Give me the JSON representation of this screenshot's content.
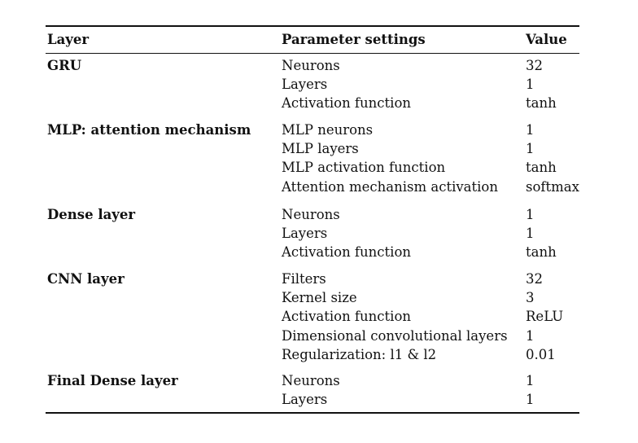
{
  "table": {
    "headers": {
      "layer": "Layer",
      "parameter": "Parameter settings",
      "value": "Value"
    },
    "groups": [
      {
        "layer": "GRU",
        "rows": [
          {
            "param": "Neurons",
            "value": "32"
          },
          {
            "param": "Layers",
            "value": "1"
          },
          {
            "param": "Activation function",
            "value": "tanh"
          }
        ]
      },
      {
        "layer": "MLP: attention mechanism",
        "rows": [
          {
            "param": "MLP neurons",
            "value": "1"
          },
          {
            "param": "MLP layers",
            "value": "1"
          },
          {
            "param": "MLP activation function",
            "value": "tanh"
          },
          {
            "param": "Attention mechanism activation",
            "value": "softmax"
          }
        ]
      },
      {
        "layer": "Dense layer",
        "rows": [
          {
            "param": "Neurons",
            "value": "1"
          },
          {
            "param": "Layers",
            "value": "1"
          },
          {
            "param": "Activation function",
            "value": "tanh"
          }
        ]
      },
      {
        "layer": "CNN layer",
        "rows": [
          {
            "param": "Filters",
            "value": "32"
          },
          {
            "param": "Kernel size",
            "value": "3"
          },
          {
            "param": "Activation function",
            "value": "ReLU"
          },
          {
            "param": "Dimensional convolutional layers",
            "value": "1"
          },
          {
            "param": "Regularization: l1 & l2",
            "value": "0.01"
          }
        ]
      },
      {
        "layer": "Final Dense layer",
        "rows": [
          {
            "param": "Neurons",
            "value": "1"
          },
          {
            "param": "Layers",
            "value": "1"
          }
        ]
      }
    ]
  }
}
